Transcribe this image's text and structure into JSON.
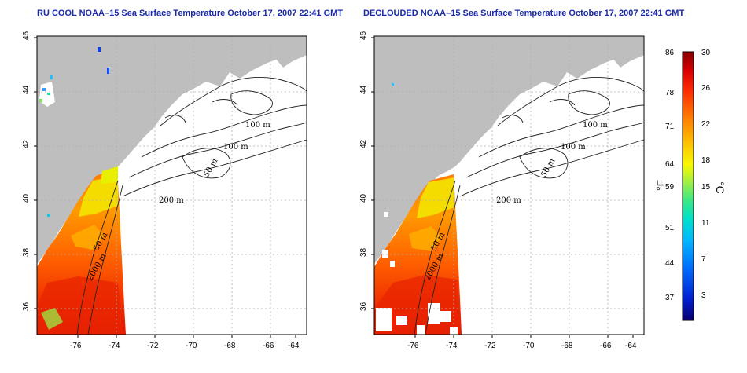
{
  "left_map": {
    "title": "RU COOL NOAA–15 Sea Surface Temperature October 17, 2007 22:41 GMT",
    "lat_ticks": [
      "46",
      "44",
      "42",
      "40",
      "38",
      "36"
    ],
    "lon_ticks": [
      "-76",
      "-74",
      "-72",
      "-70",
      "-68",
      "-66",
      "-64"
    ],
    "contour_labels": [
      "100 m",
      "100 m",
      "50 m",
      "200 m",
      "50 m",
      "2000 m"
    ]
  },
  "right_map": {
    "title": "DECLOUDED NOAA–15 Sea Surface Temperature October 17, 2007 22:41 GMT",
    "lat_ticks": [
      "46",
      "44",
      "42",
      "40",
      "38",
      "36"
    ],
    "lon_ticks": [
      "-76",
      "-74",
      "-72",
      "-70",
      "-68",
      "-66",
      "-64"
    ],
    "contour_labels": [
      "100 m",
      "100 m",
      "50 m",
      "200 m",
      "50 m",
      "2000 m"
    ]
  },
  "colorbar": {
    "fahrenheit_ticks": [
      "86",
      "78",
      "71",
      "64",
      "59",
      "51",
      "44",
      "37"
    ],
    "celsius_ticks": [
      "30",
      "26",
      "22",
      "18",
      "15",
      "11",
      "7",
      "3"
    ],
    "fahrenheit_unit": "°F",
    "celsius_unit": "°C",
    "colors": [
      "#08006e",
      "#0020d0",
      "#0070ff",
      "#00b8ff",
      "#00e0c8",
      "#40e880",
      "#a8f040",
      "#f8f800",
      "#ffc000",
      "#ff8000",
      "#ff3000",
      "#d80000",
      "#880000"
    ]
  },
  "colors": {
    "title": "#1a2aa8",
    "land": "#bebebe",
    "ocean": "#ffffff"
  }
}
